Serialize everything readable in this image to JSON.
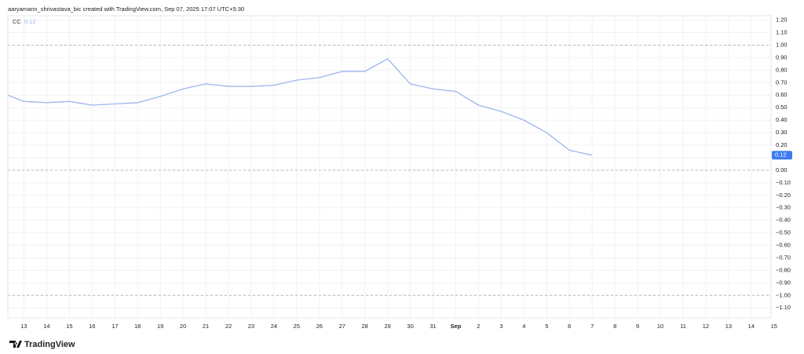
{
  "chart_data": {
    "type": "line",
    "header": "aaryamann_shrivastava_bic created with TradingView.com, Sep 07, 2025 17:07 UTC+5:30",
    "brand": "TradingView",
    "categories": [
      null,
      "13",
      "14",
      "15",
      "16",
      "17",
      "18",
      "19",
      "20",
      "21",
      "22",
      "23",
      "24",
      "25",
      "26",
      "27",
      "28",
      "29",
      "30",
      "31",
      "Sep",
      "2",
      "3",
      "4",
      "5",
      "6",
      "7",
      "8",
      "9",
      "10",
      "11",
      "12",
      "13",
      "14",
      "15"
    ],
    "series": [
      {
        "name": "CC",
        "color": "#9cb6ef",
        "values": [
          0.62,
          0.55,
          0.54,
          0.55,
          0.52,
          0.53,
          0.54,
          0.59,
          0.65,
          0.69,
          0.67,
          0.67,
          0.68,
          0.72,
          0.74,
          0.79,
          0.79,
          0.89,
          0.69,
          0.65,
          0.63,
          0.52,
          0.47,
          0.4,
          0.3,
          0.16,
          0.12,
          null,
          null,
          null,
          null,
          null,
          null,
          null,
          null
        ]
      }
    ],
    "ylim": [
      -1.18,
      1.235
    ],
    "yticks": [
      {
        "value": 1.2,
        "label": "1.20"
      },
      {
        "value": 1.1,
        "label": "1.10"
      },
      {
        "value": 1.0,
        "label": "1.00"
      },
      {
        "value": 0.9,
        "label": "0.90"
      },
      {
        "value": 0.8,
        "label": "0.80"
      },
      {
        "value": 0.7,
        "label": "0.70"
      },
      {
        "value": 0.6,
        "label": "0.60"
      },
      {
        "value": 0.5,
        "label": "0.50"
      },
      {
        "value": 0.4,
        "label": "0.40"
      },
      {
        "value": 0.3,
        "label": "0.30"
      },
      {
        "value": 0.2,
        "label": "0.20"
      },
      {
        "value": 0.1,
        "label": "0.10"
      },
      {
        "value": 0,
        "label": "0.00"
      },
      {
        "value": -0.1,
        "label": "−0.10"
      },
      {
        "value": -0.2,
        "label": "−0.20"
      },
      {
        "value": -0.3,
        "label": "−0.30"
      },
      {
        "value": -0.4,
        "label": "−0.40"
      },
      {
        "value": -0.5,
        "label": "−0.50"
      },
      {
        "value": -0.6,
        "label": "−0.60"
      },
      {
        "value": -0.7,
        "label": "−0.70"
      },
      {
        "value": -0.8,
        "label": "−0.80"
      },
      {
        "value": -0.9,
        "label": "−0.90"
      },
      {
        "value": -1.0,
        "label": "−1.00"
      },
      {
        "value": -1.1,
        "label": "−1.10"
      }
    ],
    "reference_lines": [
      1,
      0,
      -1
    ],
    "grid": true,
    "tag_color": "#3f7bf0"
  }
}
